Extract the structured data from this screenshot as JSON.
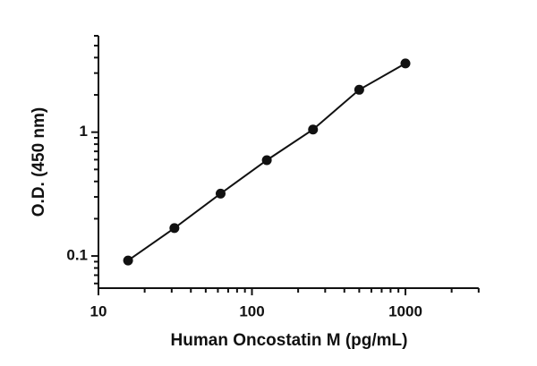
{
  "chart_data": {
    "type": "scatter",
    "x_label": "Human Oncostatin M (pg/mL)",
    "y_label": "O.D. (450 nm)",
    "x": [
      15.6,
      31.25,
      62.5,
      125,
      250,
      500,
      1000
    ],
    "series": [
      {
        "color": "#111111",
        "values": [
          0.092,
          0.168,
          0.319,
          0.594,
          1.05,
          2.2,
          3.59
        ]
      }
    ],
    "xlog": true,
    "ylog": true,
    "xlim": [
      10,
      3000
    ],
    "ylim": [
      0.055,
      6
    ],
    "xticks": [
      10,
      100,
      1000
    ],
    "yticks": [
      0.1,
      1
    ],
    "xminorticks": [
      20,
      30,
      40,
      50,
      60,
      70,
      80,
      90,
      200,
      300,
      400,
      500,
      600,
      700,
      800,
      900,
      2000,
      3000
    ],
    "yminorticks": [
      0.06,
      0.07,
      0.08,
      0.09,
      0.2,
      0.3,
      0.4,
      0.5,
      0.6,
      0.7,
      0.8,
      0.9,
      2,
      3,
      4,
      5,
      6
    ],
    "fit_line": true
  }
}
